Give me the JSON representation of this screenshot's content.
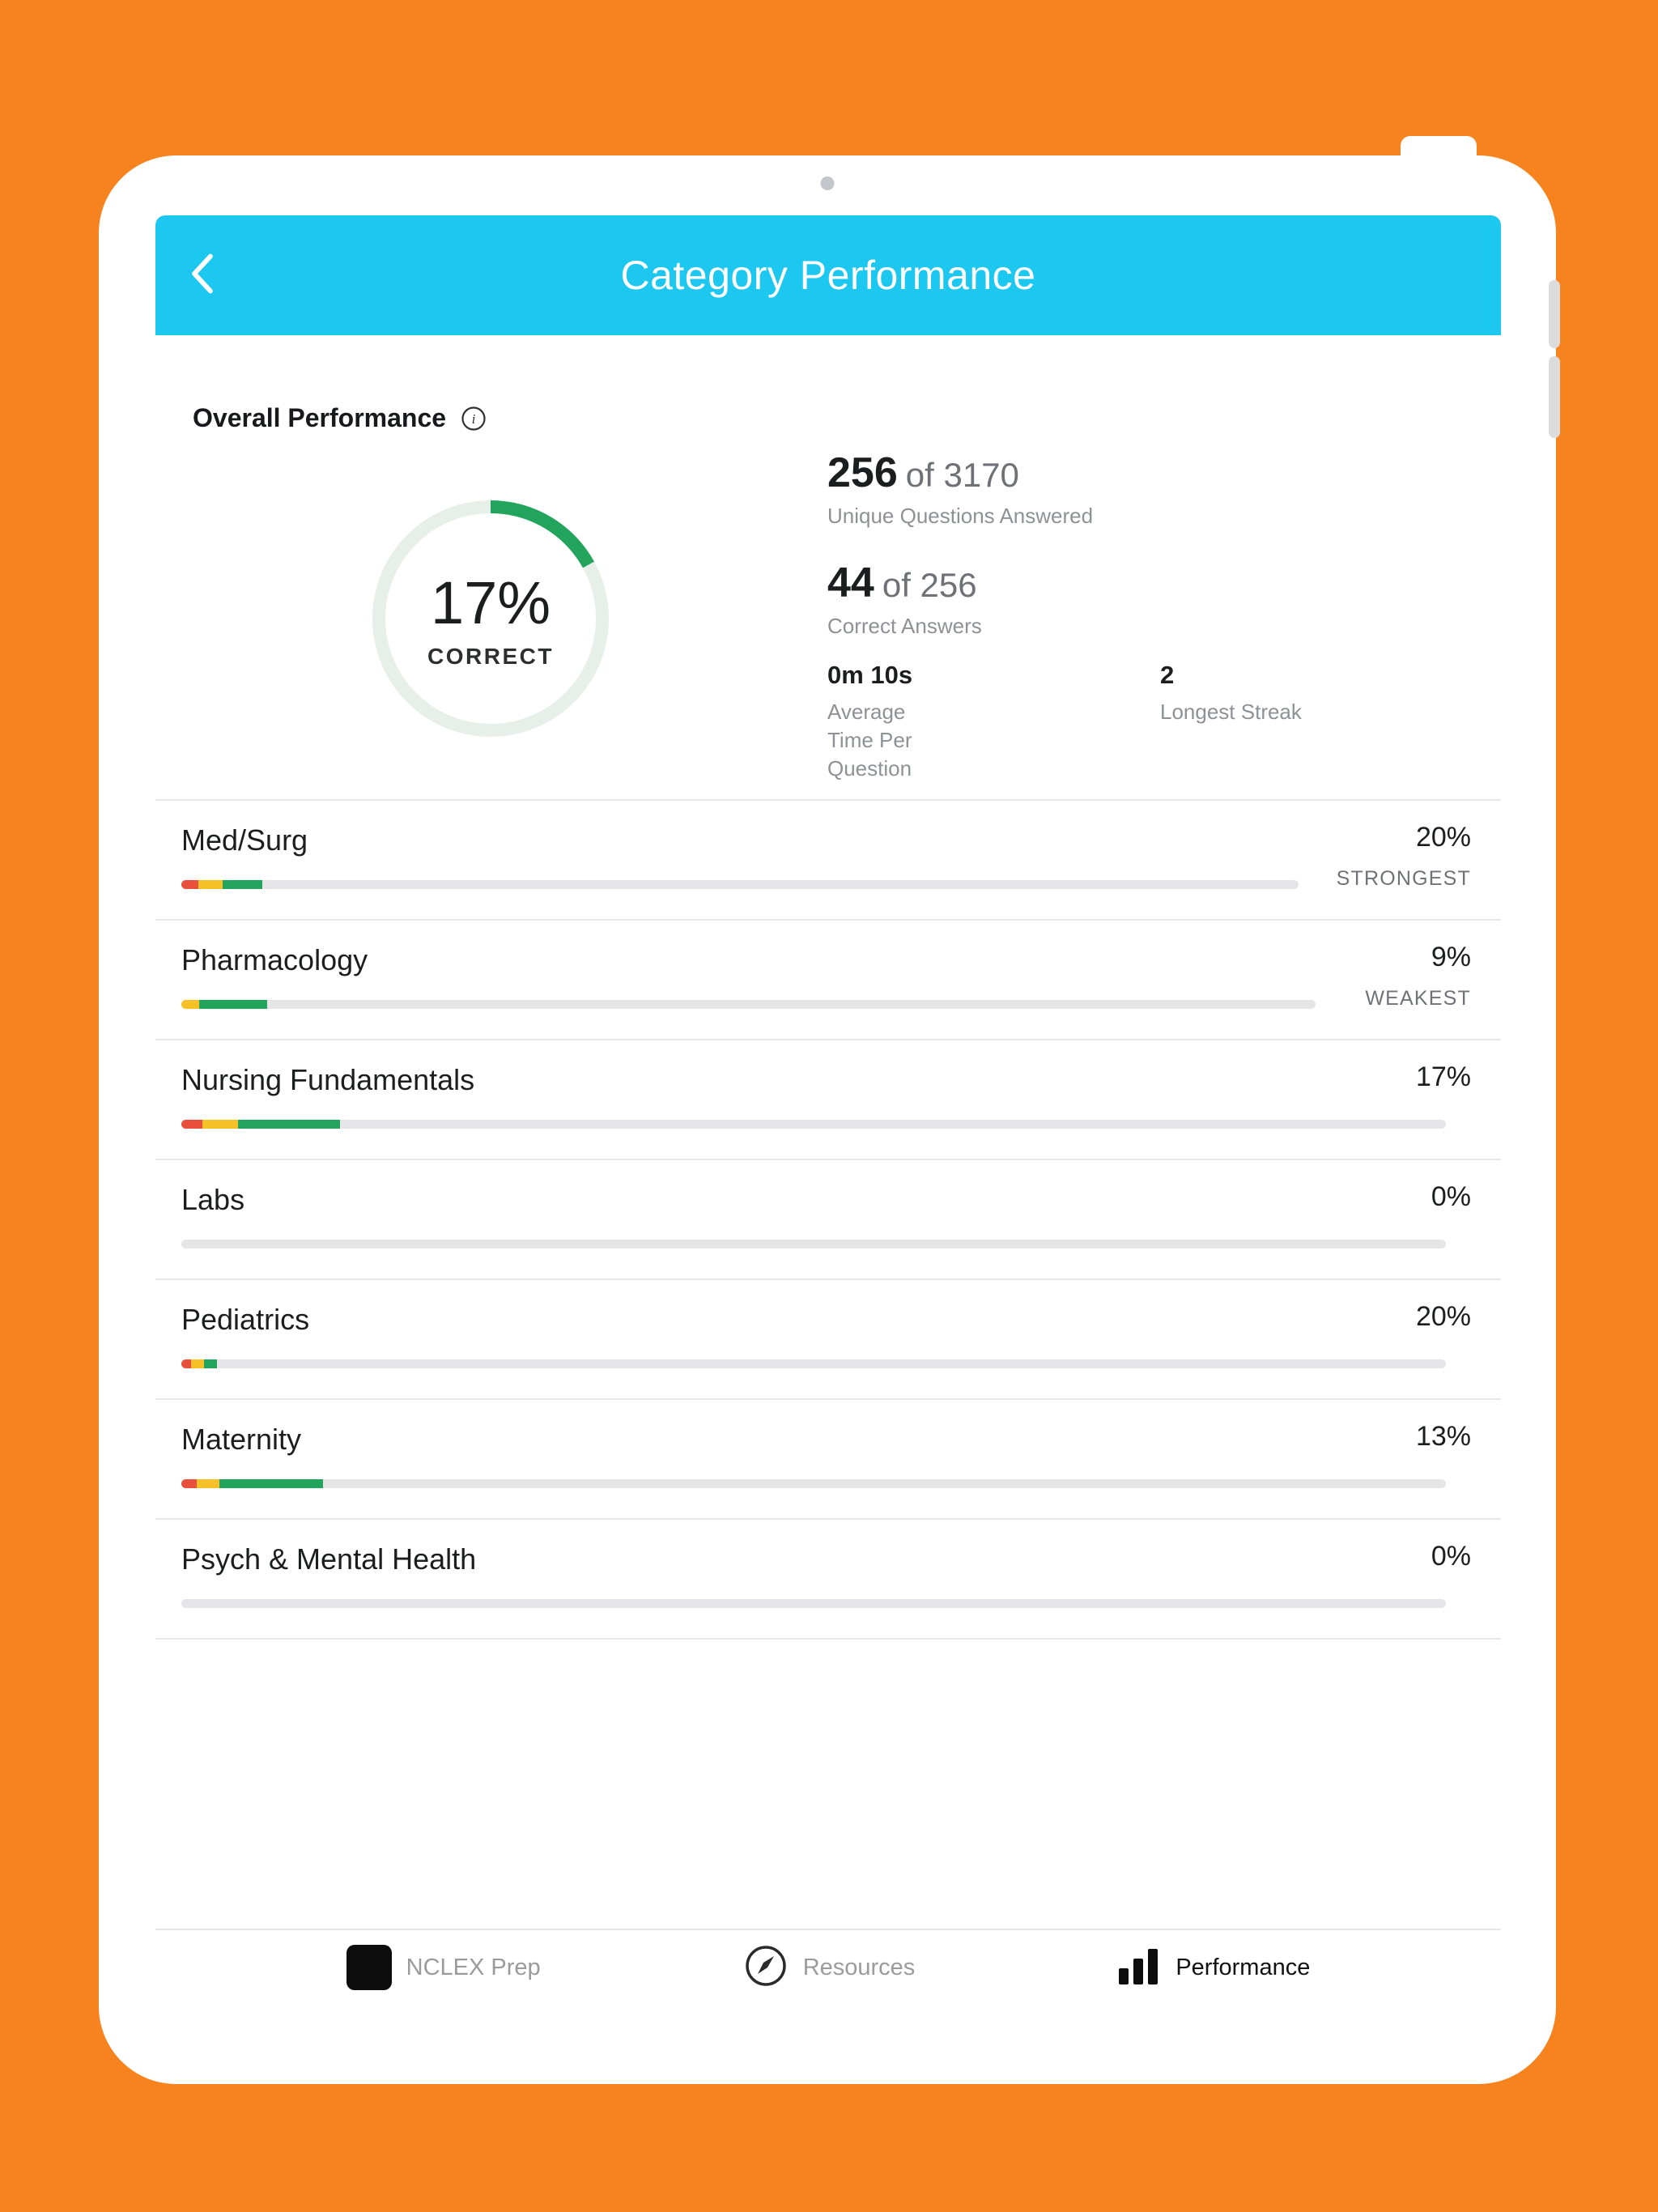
{
  "header": {
    "title": "Category Performance"
  },
  "overall": {
    "title": "Overall Performance",
    "donut": {
      "percent": 17,
      "label": "17%",
      "caption": "CORRECT"
    },
    "stat1": {
      "value": "256",
      "of": "of 3170",
      "caption": "Unique Questions Answered"
    },
    "stat2": {
      "value": "44",
      "of": "of 256",
      "caption": "Correct Answers"
    },
    "avg_time": {
      "value": "0m 10s",
      "caption_lines": [
        "Average",
        "Time Per",
        "Question"
      ]
    },
    "streak": {
      "value": "2",
      "caption": "Longest Streak"
    }
  },
  "categories": [
    {
      "name": "Med/Surg",
      "percent": "20%",
      "tag": "STRONGEST",
      "track_w": 1380,
      "segments": [
        {
          "color": "red",
          "w": 21
        },
        {
          "color": "yellow",
          "w": 30
        },
        {
          "color": "green",
          "w": 49
        }
      ]
    },
    {
      "name": "Pharmacology",
      "percent": "9%",
      "tag": "WEAKEST",
      "track_w": 1401,
      "segments": [
        {
          "color": "yellow",
          "w": 22
        },
        {
          "color": "green",
          "w": 84
        }
      ]
    },
    {
      "name": "Nursing Fundamentals",
      "percent": "17%",
      "tag": "",
      "track_w": 0,
      "segments": [
        {
          "color": "red",
          "w": 26
        },
        {
          "color": "yellow",
          "w": 44
        },
        {
          "color": "green",
          "w": 126
        }
      ]
    },
    {
      "name": "Labs",
      "percent": "0%",
      "tag": "",
      "track_w": 0,
      "segments": []
    },
    {
      "name": "Pediatrics",
      "percent": "20%",
      "tag": "",
      "track_w": 0,
      "segments": [
        {
          "color": "red",
          "w": 12
        },
        {
          "color": "yellow",
          "w": 16
        },
        {
          "color": "green",
          "w": 16
        }
      ]
    },
    {
      "name": "Maternity",
      "percent": "13%",
      "tag": "",
      "track_w": 0,
      "segments": [
        {
          "color": "red",
          "w": 19
        },
        {
          "color": "yellow",
          "w": 28
        },
        {
          "color": "green",
          "w": 128
        }
      ]
    },
    {
      "name": "Psych & Mental Health",
      "percent": "0%",
      "tag": "",
      "track_w": 0,
      "segments": []
    }
  ],
  "tabbar": {
    "items": [
      {
        "label": "NCLEX Prep",
        "icon": "nclex-logo-icon",
        "active": false
      },
      {
        "label": "Resources",
        "icon": "compass-icon",
        "active": false
      },
      {
        "label": "Performance",
        "icon": "bar-chart-icon",
        "active": true
      }
    ]
  },
  "colors": {
    "background_orange": "#F6831D",
    "header_cyan": "#1CC7F0",
    "green": "#22A45D",
    "red": "#E94F3D",
    "yellow": "#F6C026",
    "track_gray": "#E5E5E7",
    "donut_track": "#E7EFE9"
  }
}
